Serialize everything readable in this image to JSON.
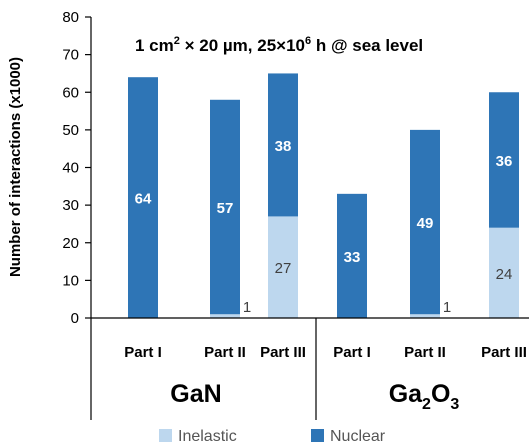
{
  "chart_data": {
    "type": "bar",
    "stacked": true,
    "title_html": "1 cm² × 20 µm, 25×10⁶ h @ sea level",
    "title_parts": {
      "a": "1 cm",
      "a_sup": "2",
      "b": " × 20 µm, 25×10",
      "b_sup": "6",
      "c": " h @ sea level"
    },
    "ylabel": "Number of interactions (x1000)",
    "ylim": [
      0,
      80
    ],
    "yticks": [
      0,
      10,
      20,
      30,
      40,
      50,
      60,
      70,
      80
    ],
    "grid": false,
    "groups": [
      {
        "label": "GaN",
        "sub": "",
        "categories": [
          "Part I",
          "Part II",
          "Part III"
        ]
      },
      {
        "label": "Ga",
        "sub": "2",
        "label_tail": "O",
        "sub2": "3",
        "categories": [
          "Part I",
          "Part II",
          "Part III"
        ]
      }
    ],
    "categories": [
      "Part I",
      "Part II",
      "Part III",
      "Part I",
      "Part II",
      "Part III"
    ],
    "series": [
      {
        "name": "Inelastic",
        "color": "#bdd7ee",
        "values": [
          0,
          1,
          27,
          0,
          1,
          24
        ],
        "labels": [
          "",
          "1",
          "27",
          "",
          "1",
          "24"
        ]
      },
      {
        "name": "Nuclear",
        "color": "#2e75b6",
        "values": [
          64,
          57,
          38,
          33,
          49,
          36
        ],
        "labels": [
          "64",
          "57",
          "38",
          "33",
          "49",
          "36"
        ]
      }
    ],
    "legend_position": "bottom-center"
  }
}
